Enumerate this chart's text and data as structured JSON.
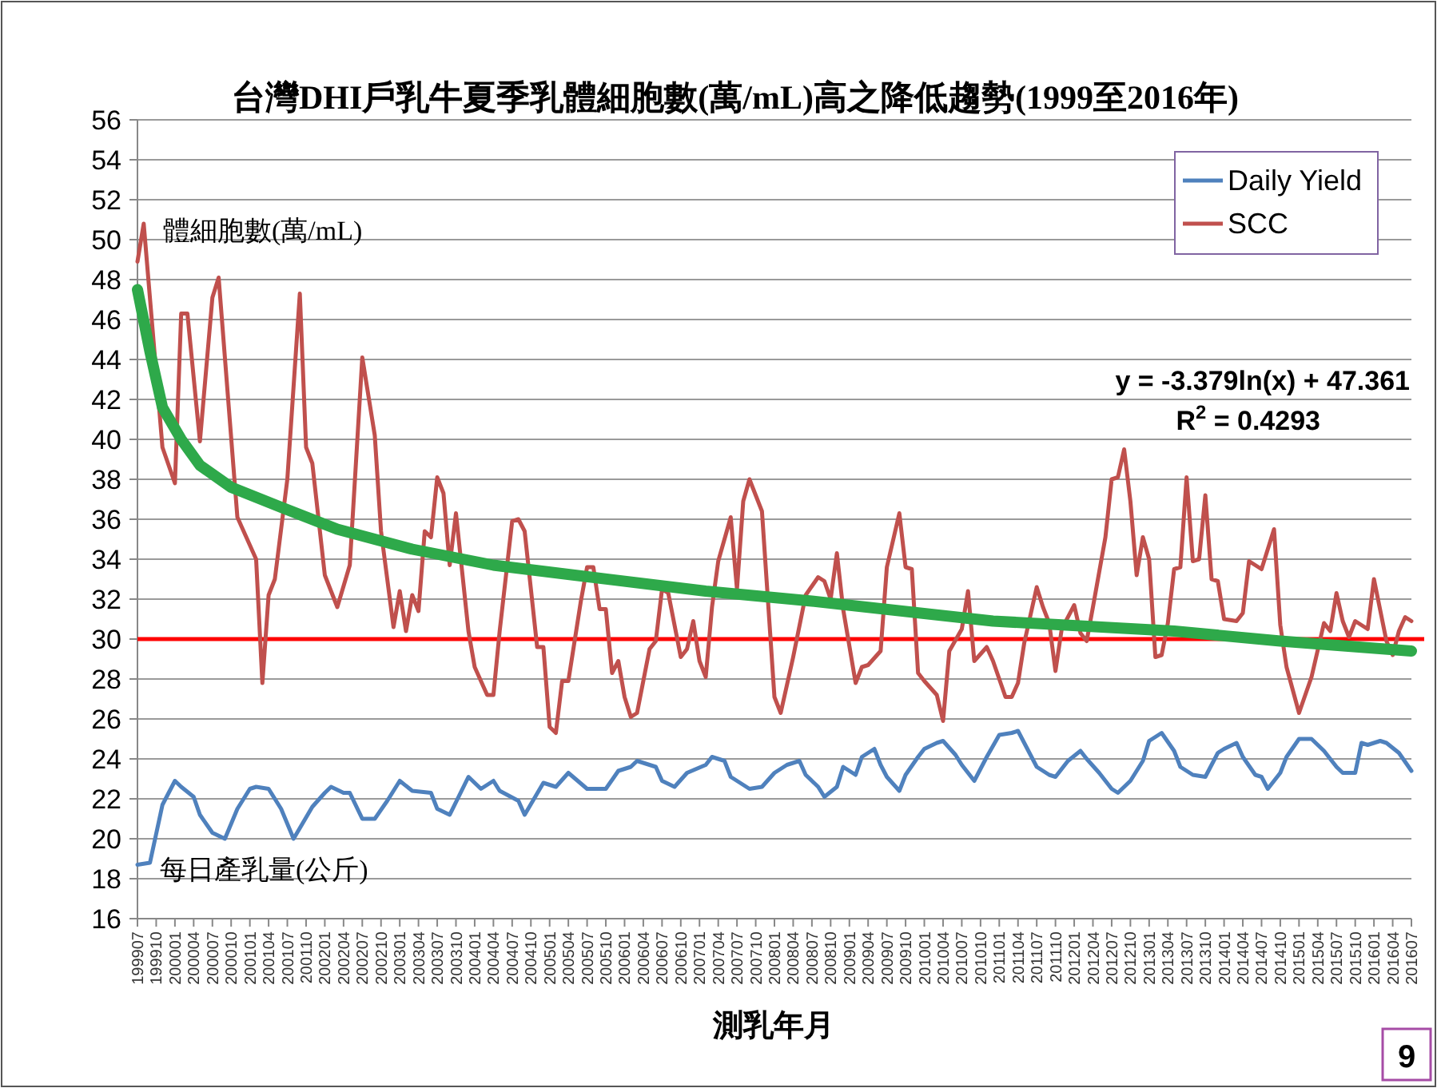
{
  "chart_data": {
    "type": "line",
    "title": "台灣DHI戶乳牛夏季乳體細胞數(萬/mL)高之降低趨勢(1999至2016年)",
    "xlabel": "測乳年月",
    "annotations": [
      "體細胞數(萬/mL)",
      "每日產乳量(公斤)",
      "y = -3.379ln(x) + 47.361",
      "R$^{2}$ = 0.4293",
      "9"
    ],
    "xlim": [
      "1999-07",
      "2016-07"
    ],
    "ylim": [
      16,
      56
    ],
    "yticks": [
      16,
      18,
      20,
      22,
      24,
      26,
      28,
      30,
      32,
      34,
      36,
      38,
      40,
      42,
      44,
      46,
      48,
      50,
      52,
      54,
      56
    ],
    "xticks": [
      {
        "value": "1999-07",
        "label": "199907"
      },
      {
        "value": "1999-10",
        "label": "199910"
      },
      {
        "value": "2000-01",
        "label": "200001"
      },
      {
        "value": "2000-04",
        "label": "200004"
      },
      {
        "value": "2000-07",
        "label": "200007"
      },
      {
        "value": "2000-10",
        "label": "200010"
      },
      {
        "value": "2001-01",
        "label": "200101"
      },
      {
        "value": "2001-04",
        "label": "200104"
      },
      {
        "value": "2001-07",
        "label": "200107"
      },
      {
        "value": "2001-10",
        "label": "200110"
      },
      {
        "value": "2002-01",
        "label": "200201"
      },
      {
        "value": "2002-04",
        "label": "200204"
      },
      {
        "value": "2002-07",
        "label": "200207"
      },
      {
        "value": "2002-10",
        "label": "200210"
      },
      {
        "value": "2003-01",
        "label": "200301"
      },
      {
        "value": "2003-04",
        "label": "200304"
      },
      {
        "value": "2003-07",
        "label": "200307"
      },
      {
        "value": "2003-10",
        "label": "200310"
      },
      {
        "value": "2004-01",
        "label": "200401"
      },
      {
        "value": "2004-04",
        "label": "200404"
      },
      {
        "value": "2004-07",
        "label": "200407"
      },
      {
        "value": "2004-10",
        "label": "200410"
      },
      {
        "value": "2005-01",
        "label": "200501"
      },
      {
        "value": "2005-04",
        "label": "200504"
      },
      {
        "value": "2005-07",
        "label": "200507"
      },
      {
        "value": "2005-10",
        "label": "200510"
      },
      {
        "value": "2006-01",
        "label": "200601"
      },
      {
        "value": "2006-04",
        "label": "200604"
      },
      {
        "value": "2006-07",
        "label": "200607"
      },
      {
        "value": "2006-10",
        "label": "200610"
      },
      {
        "value": "2007-01",
        "label": "200701"
      },
      {
        "value": "2007-04",
        "label": "200704"
      },
      {
        "value": "2007-07",
        "label": "200707"
      },
      {
        "value": "2007-10",
        "label": "200710"
      },
      {
        "value": "2008-01",
        "label": "200801"
      },
      {
        "value": "2008-04",
        "label": "200804"
      },
      {
        "value": "2008-07",
        "label": "200807"
      },
      {
        "value": "2008-10",
        "label": "200810"
      },
      {
        "value": "2009-01",
        "label": "200901"
      },
      {
        "value": "2009-04",
        "label": "200904"
      },
      {
        "value": "2009-07",
        "label": "200907"
      },
      {
        "value": "2009-10",
        "label": "200910"
      },
      {
        "value": "2010-01",
        "label": "201001"
      },
      {
        "value": "2010-04",
        "label": "201004"
      },
      {
        "value": "2010-07",
        "label": "201007"
      },
      {
        "value": "2010-10",
        "label": "201010"
      },
      {
        "value": "2011-01",
        "label": "201101"
      },
      {
        "value": "2011-04",
        "label": "201104"
      },
      {
        "value": "2011-07",
        "label": "201107"
      },
      {
        "value": "2011-10",
        "label": "201110"
      },
      {
        "value": "2012-01",
        "label": "201201"
      },
      {
        "value": "2012-04",
        "label": "201204"
      },
      {
        "value": "2012-07",
        "label": "201207"
      },
      {
        "value": "2012-10",
        "label": "201210"
      },
      {
        "value": "2013-01",
        "label": "201301"
      },
      {
        "value": "2013-04",
        "label": "201304"
      },
      {
        "value": "2013-07",
        "label": "201307"
      },
      {
        "value": "2013-10",
        "label": "201310"
      },
      {
        "value": "2014-01",
        "label": "201401"
      },
      {
        "value": "2014-04",
        "label": "201404"
      },
      {
        "value": "2014-07",
        "label": "201407"
      },
      {
        "value": "2014-10",
        "label": "201410"
      },
      {
        "value": "2015-01",
        "label": "201501"
      },
      {
        "value": "2015-04",
        "label": "201504"
      },
      {
        "value": "2015-07",
        "label": "201507"
      },
      {
        "value": "2015-10",
        "label": "201510"
      },
      {
        "value": "2016-01",
        "label": "201601"
      },
      {
        "value": "2016-04",
        "label": "201604"
      },
      {
        "value": "2016-07",
        "label": "201607"
      }
    ],
    "grid": "y",
    "legend": "top right",
    "ref_lines": [
      {
        "axis": "y",
        "value": 30,
        "color": "#ff0000"
      }
    ],
    "series": [
      {
        "name": "Daily Yield",
        "color": "#4f81bd",
        "x": [
          "1999-07",
          "1999-09",
          "1999-11",
          "2000-01",
          "2000-02",
          "2000-04",
          "2000-05",
          "2000-07",
          "2000-09",
          "2000-11",
          "2001-01",
          "2001-02",
          "2001-04",
          "2001-06",
          "2001-08",
          "2001-11",
          "2002-01",
          "2002-02",
          "2002-04",
          "2002-05",
          "2002-07",
          "2002-09",
          "2002-11",
          "2003-01",
          "2003-03",
          "2003-06",
          "2003-07",
          "2003-09",
          "2003-12",
          "2004-02",
          "2004-04",
          "2004-05",
          "2004-08",
          "2004-09",
          "2004-12",
          "2005-02",
          "2005-04",
          "2005-07",
          "2005-10",
          "2005-12",
          "2006-02",
          "2006-03",
          "2006-06",
          "2006-07",
          "2006-09",
          "2006-11",
          "2007-02",
          "2007-03",
          "2007-05",
          "2007-06",
          "2007-09",
          "2007-11",
          "2008-01",
          "2008-03",
          "2008-05",
          "2008-06",
          "2008-08",
          "2008-09",
          "2008-11",
          "2008-12",
          "2009-02",
          "2009-03",
          "2009-05",
          "2009-06",
          "2009-07",
          "2009-09",
          "2009-10",
          "2009-12",
          "2010-01",
          "2010-03",
          "2010-04",
          "2010-06",
          "2010-07",
          "2010-09",
          "2010-11",
          "2011-01",
          "2011-03",
          "2011-04",
          "2011-05",
          "2011-07",
          "2011-09",
          "2011-10",
          "2011-12",
          "2012-02",
          "2012-03",
          "2012-05",
          "2012-07",
          "2012-08",
          "2012-10",
          "2012-12",
          "2013-01",
          "2013-03",
          "2013-05",
          "2013-06",
          "2013-08",
          "2013-10",
          "2013-12",
          "2014-01",
          "2014-03",
          "2014-04",
          "2014-06",
          "2014-07",
          "2014-08",
          "2014-10",
          "2014-11",
          "2015-01",
          "2015-03",
          "2015-05",
          "2015-07",
          "2015-08",
          "2015-10",
          "2015-11",
          "2015-12",
          "2016-02",
          "2016-03",
          "2016-05",
          "2016-07"
        ],
        "values": [
          18.7,
          18.8,
          21.7,
          22.9,
          22.6,
          22.1,
          21.2,
          20.3,
          20,
          21.5,
          22.5,
          22.6,
          22.5,
          21.5,
          20,
          21.6,
          22.3,
          22.6,
          22.3,
          22.3,
          21,
          21,
          21.9,
          22.9,
          22.4,
          22.3,
          21.5,
          21.2,
          23.1,
          22.5,
          22.9,
          22.4,
          21.9,
          21.2,
          22.8,
          22.6,
          23.3,
          22.5,
          22.5,
          23.4,
          23.6,
          23.9,
          23.6,
          22.9,
          22.6,
          23.3,
          23.7,
          24.1,
          23.9,
          23.1,
          22.5,
          22.6,
          23.3,
          23.7,
          23.9,
          23.2,
          22.6,
          22.1,
          22.6,
          23.6,
          23.2,
          24.1,
          24.5,
          23.7,
          23.1,
          22.4,
          23.2,
          24.1,
          24.5,
          24.8,
          24.9,
          24.2,
          23.7,
          22.9,
          24.1,
          25.2,
          25.3,
          25.4,
          24.8,
          23.6,
          23.2,
          23.1,
          23.9,
          24.4,
          24,
          23.3,
          22.5,
          22.3,
          22.9,
          23.9,
          24.9,
          25.3,
          24.4,
          23.6,
          23.2,
          23.1,
          24.3,
          24.5,
          24.8,
          24.1,
          23.2,
          23.1,
          22.5,
          23.3,
          24.1,
          25,
          25,
          24.4,
          23.6,
          23.3,
          23.3,
          24.8,
          24.7,
          24.9,
          24.8,
          24.3,
          23.4
        ]
      },
      {
        "name": "SCC",
        "color": "#c0504d",
        "x": [
          "1999-07",
          "1999-08",
          "1999-11",
          "2000-01",
          "2000-02",
          "2000-03",
          "2000-05",
          "2000-07",
          "2000-08",
          "2000-11",
          "2001-02",
          "2001-03",
          "2001-04",
          "2001-05",
          "2001-07",
          "2001-09",
          "2001-10",
          "2001-11",
          "2002-01",
          "2002-03",
          "2002-05",
          "2002-07",
          "2002-09",
          "2002-10",
          "2002-12",
          "2003-01",
          "2003-02",
          "2003-03",
          "2003-04",
          "2003-05",
          "2003-06",
          "2003-07",
          "2003-08",
          "2003-09",
          "2003-10",
          "2003-12",
          "2004-01",
          "2004-03",
          "2004-04",
          "2004-05",
          "2004-07",
          "2004-08",
          "2004-09",
          "2004-11",
          "2004-12",
          "2005-01",
          "2005-02",
          "2005-03",
          "2005-04",
          "2005-06",
          "2005-07",
          "2005-08",
          "2005-09",
          "2005-10",
          "2005-11",
          "2005-12",
          "2006-01",
          "2006-02",
          "2006-03",
          "2006-05",
          "2006-06",
          "2006-07",
          "2006-08",
          "2006-10",
          "2006-11",
          "2006-12",
          "2007-01",
          "2007-02",
          "2007-03",
          "2007-04",
          "2007-06",
          "2007-07",
          "2007-08",
          "2007-09",
          "2007-11",
          "2008-01",
          "2008-02",
          "2008-04",
          "2008-06",
          "2008-08",
          "2008-09",
          "2008-10",
          "2008-11",
          "2008-12",
          "2009-02",
          "2009-03",
          "2009-04",
          "2009-06",
          "2009-07",
          "2009-09",
          "2009-10",
          "2009-11",
          "2009-12",
          "2010-01",
          "2010-03",
          "2010-04",
          "2010-05",
          "2010-07",
          "2010-08",
          "2010-09",
          "2010-11",
          "2010-12",
          "2011-02",
          "2011-03",
          "2011-04",
          "2011-05",
          "2011-07",
          "2011-08",
          "2011-09",
          "2011-10",
          "2011-11",
          "2012-01",
          "2012-02",
          "2012-03",
          "2012-04",
          "2012-06",
          "2012-07",
          "2012-08",
          "2012-09",
          "2012-10",
          "2012-11",
          "2012-12",
          "2013-01",
          "2013-02",
          "2013-03",
          "2013-04",
          "2013-05",
          "2013-06",
          "2013-07",
          "2013-08",
          "2013-09",
          "2013-10",
          "2013-11",
          "2013-12",
          "2014-01",
          "2014-03",
          "2014-04",
          "2014-05",
          "2014-07",
          "2014-09",
          "2014-10",
          "2014-11",
          "2015-01",
          "2015-03",
          "2015-05",
          "2015-06",
          "2015-07",
          "2015-08",
          "2015-09",
          "2015-10",
          "2015-12",
          "2016-01",
          "2016-03",
          "2016-04",
          "2016-05",
          "2016-06",
          "2016-07"
        ],
        "values": [
          48.9,
          50.8,
          39.6,
          37.8,
          46.3,
          46.3,
          39.9,
          47.1,
          48.1,
          36.1,
          34,
          27.8,
          32.2,
          33,
          38,
          47.3,
          39.6,
          38.8,
          33.2,
          31.6,
          33.7,
          44.1,
          40.2,
          35.4,
          30.6,
          32.4,
          30.4,
          32.2,
          31.4,
          35.4,
          35.1,
          38.1,
          37.3,
          33.7,
          36.3,
          30.4,
          28.6,
          27.2,
          27.2,
          30.4,
          35.9,
          36,
          35.4,
          29.6,
          29.6,
          25.6,
          25.3,
          27.9,
          27.9,
          31.9,
          33.6,
          33.6,
          31.5,
          31.5,
          28.3,
          28.9,
          27.1,
          26.1,
          26.3,
          29.5,
          29.9,
          32.5,
          32.3,
          29.1,
          29.5,
          30.9,
          28.9,
          28.1,
          31.6,
          33.9,
          36.1,
          32.5,
          36.9,
          38,
          36.4,
          27.1,
          26.3,
          29.1,
          32.2,
          33.1,
          32.9,
          32,
          34.3,
          31.5,
          27.8,
          28.6,
          28.7,
          29.4,
          33.6,
          36.3,
          33.6,
          33.5,
          28.3,
          27.9,
          27.2,
          25.9,
          29.4,
          30.5,
          32.4,
          28.9,
          29.6,
          28.9,
          27.1,
          27.1,
          27.8,
          29.8,
          32.6,
          31.6,
          30.8,
          28.4,
          30.5,
          31.7,
          30.3,
          29.9,
          31.6,
          35.1,
          38,
          38.1,
          39.5,
          36.9,
          33.2,
          35.1,
          34,
          29.1,
          29.2,
          30.8,
          33.5,
          33.6,
          38.1,
          33.9,
          34,
          37.2,
          33,
          32.9,
          31,
          30.9,
          31.3,
          33.9,
          33.5,
          35.5,
          30.7,
          28.6,
          26.3,
          28.1,
          30.8,
          30.4,
          32.3,
          30.9,
          30.1,
          30.9,
          30.5,
          33,
          29.9,
          29.2,
          30.4,
          31.1,
          30.9
        ]
      },
      {
        "color": "#2ea94a",
        "x": [
          "1999-07",
          "1999-09",
          "1999-11",
          "2000-02",
          "2000-05",
          "2000-10",
          "2001-06",
          "2002-03",
          "2003-03",
          "2004-04",
          "2005-05",
          "2007-02",
          "2008-07",
          "2010-12",
          "2013-05",
          "2014-10",
          "2016-07"
        ],
        "values": [
          47.5,
          44.4,
          41.6,
          40,
          38.7,
          37.6,
          36.6,
          35.5,
          34.5,
          33.7,
          33.2,
          32.4,
          31.9,
          30.9,
          30.4,
          29.9,
          29.4
        ]
      }
    ]
  }
}
